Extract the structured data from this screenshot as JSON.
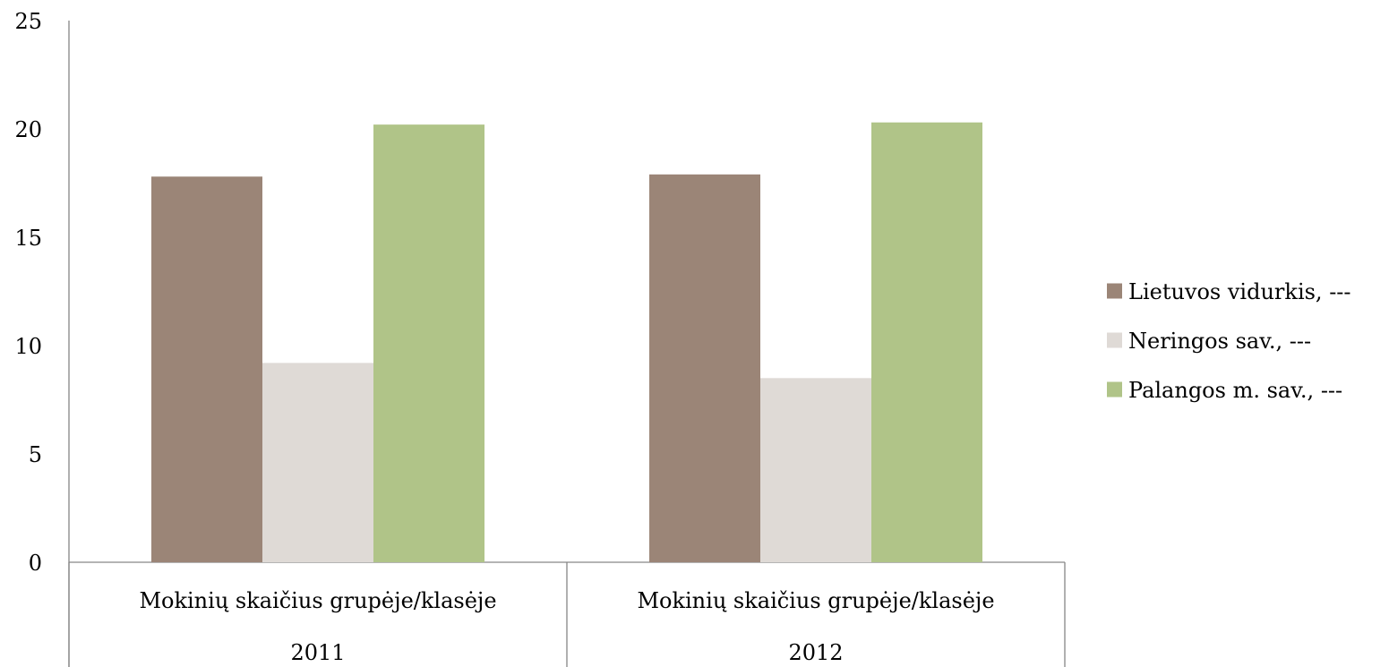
{
  "chart_data": {
    "type": "bar",
    "title": "",
    "xlabel": "",
    "ylabel": "",
    "ylim": [
      0,
      25
    ],
    "yticks": [
      0,
      5,
      10,
      15,
      20,
      25
    ],
    "categories": [
      {
        "label": "Mokinių skaičius grupėje/klasėje",
        "year": "2011"
      },
      {
        "label": "Mokinių skaičius grupėje/klasėje",
        "year": "2012"
      }
    ],
    "series": [
      {
        "name": "Lietuvos vidurkis, ---",
        "color": "#9b8577",
        "values": [
          17.8,
          17.9
        ]
      },
      {
        "name": "Neringos sav., ---",
        "color": "#dfdad6",
        "values": [
          9.2,
          8.5
        ]
      },
      {
        "name": "Palangos m. sav., ---",
        "color": "#b0c488",
        "values": [
          20.2,
          20.3
        ]
      }
    ],
    "grid": false,
    "legend_position": "right"
  }
}
